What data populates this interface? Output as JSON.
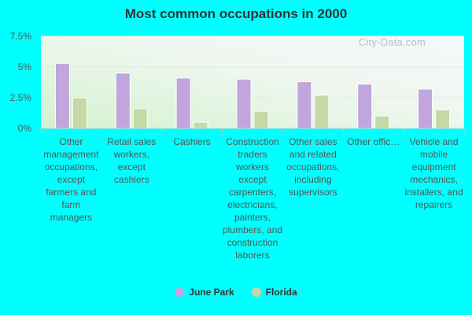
{
  "chart_data": {
    "type": "bar",
    "title": "Most common occupations in 2000",
    "xlabel": "",
    "ylabel": "",
    "ylim": [
      0,
      7.5
    ],
    "yticks": [
      {
        "value": 0,
        "label": "0%"
      },
      {
        "value": 2.5,
        "label": "2.5%"
      },
      {
        "value": 5,
        "label": "5%"
      },
      {
        "value": 7.5,
        "label": "7.5%"
      }
    ],
    "categories": [
      "Other management occupations, except farmers and farm managers",
      "Retail sales workers, except cashiers",
      "Cashiers",
      "Construction traders workers except carpenters, electricians, painters, plumbers, and construction laborers",
      "Other sales and related occupations, including supervisors",
      "Other offic…",
      "Vehicle and mobile equipment mechanics, installers, and repairers"
    ],
    "series": [
      {
        "name": "June Park",
        "color": "#c0a6dc",
        "values": [
          5.3,
          4.5,
          4.1,
          4.0,
          3.8,
          3.6,
          3.2
        ]
      },
      {
        "name": "Florida",
        "color": "#c4d9a5",
        "values": [
          2.5,
          1.6,
          0.5,
          1.4,
          2.7,
          1.0,
          1.5
        ]
      }
    ],
    "grid": true,
    "legend_position": "bottom"
  },
  "watermark": "City-Data.com"
}
